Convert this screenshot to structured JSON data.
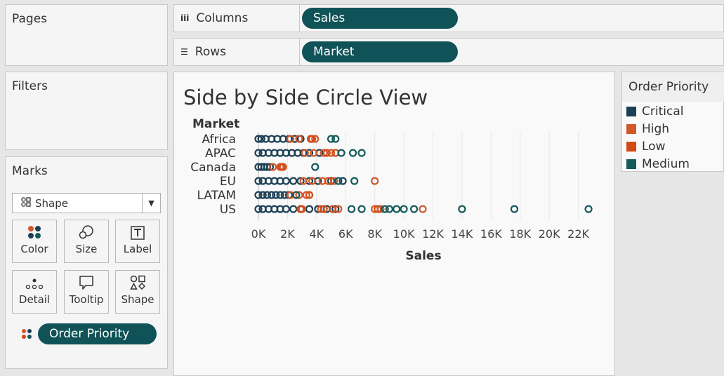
{
  "pages": {
    "title": "Pages"
  },
  "filters": {
    "title": "Filters"
  },
  "marks": {
    "title": "Marks",
    "mark_type": "Shape",
    "mark_type_icon": "shape-grid-icon",
    "buttons": [
      {
        "label": "Color",
        "icon": "color-dots-icon"
      },
      {
        "label": "Size",
        "icon": "size-circles-icon"
      },
      {
        "label": "Label",
        "icon": "label-t-icon"
      },
      {
        "label": "Detail",
        "icon": "detail-dots-icon"
      },
      {
        "label": "Tooltip",
        "icon": "speech-bubble-icon"
      },
      {
        "label": "Shape",
        "icon": "shapes-icon"
      }
    ],
    "color_field": "Order Priority"
  },
  "shelves": {
    "columns_label": "Columns",
    "columns_pill": "Sales",
    "rows_label": "Rows",
    "rows_pill": "Market"
  },
  "colors": {
    "critical": "#1c3f55",
    "high": "#d2572a",
    "low": "#d14b17",
    "medium": "#145a5a",
    "pill": "#0f5257"
  },
  "legend": {
    "title": "Order Priority",
    "items": [
      {
        "label": "Critical",
        "color": "#1c3f55"
      },
      {
        "label": "High",
        "color": "#d2572a"
      },
      {
        "label": "Low",
        "color": "#d14b17"
      },
      {
        "label": "Medium",
        "color": "#145a5a"
      }
    ]
  },
  "chart_data": {
    "type": "scatter",
    "title": "Side by Side Circle View",
    "ylabel": "Market",
    "xlabel": "Sales",
    "categories": [
      "Africa",
      "APAC",
      "Canada",
      "EU",
      "LATAM",
      "US"
    ],
    "x_ticks": [
      "0K",
      "2K",
      "4K",
      "6K",
      "8K",
      "10K",
      "12K",
      "14K",
      "16K",
      "18K",
      "20K",
      "22K"
    ],
    "xlim": [
      0,
      24000
    ],
    "grid": true,
    "series": [
      {
        "name": "Critical",
        "points": {
          "Africa": [
            0,
            200,
            500,
            900,
            1300,
            1700,
            2100,
            2500,
            2900
          ],
          "APAC": [
            0,
            300,
            700,
            1100,
            1500,
            1900,
            2300,
            2700,
            3100,
            3500,
            4200
          ],
          "Canada": [
            0,
            200,
            400,
            600,
            800
          ],
          "EU": [
            0,
            300,
            700,
            1100,
            1500,
            1900,
            2400,
            2900,
            3500,
            4100,
            5000,
            5800
          ],
          "LATAM": [
            0,
            300,
            600,
            900,
            1200,
            1500,
            1800,
            2100
          ],
          "US": [
            0,
            300,
            700,
            1100,
            1500,
            1900,
            2400,
            2900,
            3500,
            4100,
            4700,
            5300
          ]
        }
      },
      {
        "name": "High",
        "points": {
          "Africa": [
            2200,
            2800,
            3700,
            3900
          ],
          "APAC": [
            3200,
            3800,
            4500,
            5000
          ],
          "Canada": [
            1000,
            1500,
            1700
          ],
          "EU": [
            3100,
            3700,
            4400,
            5200,
            8000
          ],
          "LATAM": [
            2200,
            2800,
            3300
          ],
          "US": [
            3000,
            4300,
            5500,
            8000,
            8400,
            11300
          ]
        }
      },
      {
        "name": "Low",
        "points": {
          "Africa": [
            3600
          ],
          "APAC": [
            4700,
            5300
          ],
          "Canada": [
            1600
          ],
          "EU": [
            4800
          ],
          "LATAM": [
            3500
          ],
          "US": [
            2900,
            4500,
            5100,
            8200
          ]
        }
      },
      {
        "name": "Medium",
        "points": {
          "Africa": [
            5000,
            5300
          ],
          "APAC": [
            5700,
            6500,
            7100
          ],
          "Canada": [
            3900
          ],
          "EU": [
            5500,
            6600
          ],
          "LATAM": [
            2600
          ],
          "US": [
            6400,
            7100,
            8700,
            9000,
            9500,
            10000,
            10700,
            14000,
            17600,
            22700
          ]
        }
      }
    ]
  }
}
